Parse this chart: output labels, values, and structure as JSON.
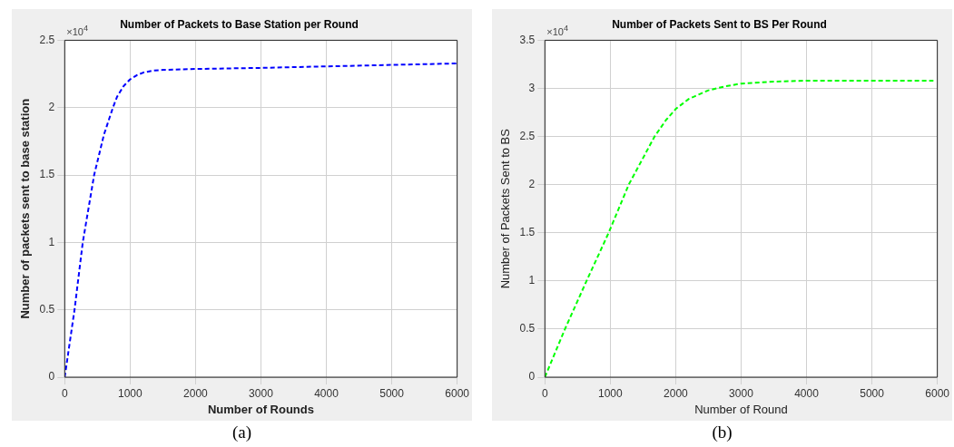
{
  "chart_data": [
    {
      "type": "line",
      "title": "Number of Packets to Base Station per Round",
      "xlabel": "Number of Rounds",
      "ylabel": "Number of packets sent to base station",
      "annotations": [
        "×10$^{4}$",
        "(a)"
      ],
      "series": [
        {
          "color": "#0000ff",
          "x": [
            0,
            150,
            276,
            450,
            600,
            737,
            800,
            900,
            1000,
            1100,
            1200,
            1350,
            1500,
            2000,
            3000,
            4000,
            5000,
            6000
          ],
          "values": [
            0,
            0.5,
            1.0,
            1.5,
            1.8,
            2.0,
            2.08,
            2.16,
            2.21,
            2.24,
            2.26,
            2.275,
            2.28,
            2.287,
            2.295,
            2.306,
            2.317,
            2.328
          ]
        }
      ],
      "xlim": [
        0,
        6000
      ],
      "xticks": [
        0,
        1000,
        2000,
        3000,
        4000,
        5000,
        6000
      ],
      "ylim": [
        0,
        2.5
      ],
      "yticks": [
        0,
        0.5,
        1,
        1.5,
        2,
        2.5
      ],
      "grid": true,
      "line_style": "dashed",
      "marker": "none",
      "legend": false
    },
    {
      "type": "line",
      "title": "Number of Packets Sent to BS Per Round",
      "xlabel": "Number of Round",
      "ylabel": "Number of Packets Sent to BS",
      "annotations": [
        "×10$^{4}$",
        "(b)"
      ],
      "series": [
        {
          "color": "#00ff00",
          "x": [
            0,
            307,
            637,
            975,
            1282,
            1677,
            1850,
            2006,
            2200,
            2500,
            2750,
            3000,
            3500,
            4000,
            5000,
            5940
          ],
          "values": [
            0,
            0.5,
            1.0,
            1.5,
            2.0,
            2.5,
            2.67,
            2.79,
            2.89,
            2.98,
            3.02,
            3.05,
            3.07,
            3.08,
            3.08,
            3.08
          ]
        }
      ],
      "xlim": [
        0,
        6000
      ],
      "xticks": [
        0,
        1000,
        2000,
        3000,
        4000,
        5000,
        6000
      ],
      "ylim": [
        0,
        3.5
      ],
      "yticks": [
        0,
        0.5,
        1,
        1.5,
        2,
        2.5,
        3,
        3.5
      ],
      "grid": true,
      "line_style": "dashed",
      "marker": "none",
      "legend": false
    }
  ]
}
